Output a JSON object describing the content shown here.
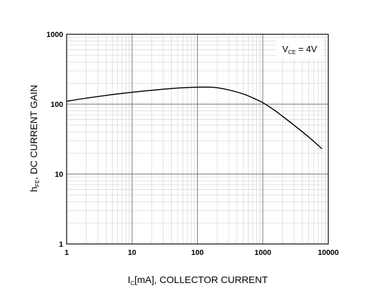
{
  "chart_data": {
    "type": "line",
    "xscale": "log",
    "yscale": "log",
    "xlim": [
      1,
      10000
    ],
    "ylim": [
      1,
      1000
    ],
    "grid": true,
    "x_tick_labels": [
      "1",
      "10",
      "100",
      "1000",
      "10000"
    ],
    "y_tick_labels": [
      "1",
      "10",
      "100",
      "1000"
    ],
    "xlabel": {
      "main": "I",
      "sub": "C",
      "rest": "[mA], COLLECTOR CURRENT"
    },
    "ylabel": {
      "main": "h",
      "sub": "FE",
      "rest": ", DC CURRENT GAIN"
    },
    "annotation": {
      "main": "V",
      "sub": "CE",
      "rest": " = 4V",
      "position": "top-right"
    },
    "series": [
      {
        "x": [
          1,
          2,
          5,
          10,
          20,
          50,
          100,
          150,
          200,
          300,
          500,
          700,
          1000,
          1500,
          2000,
          3000,
          5000,
          8000
        ],
        "y": [
          110,
          122,
          137,
          148,
          158,
          170,
          175,
          175,
          172,
          160,
          140,
          123,
          105,
          82,
          67,
          50,
          34,
          23
        ]
      }
    ]
  }
}
